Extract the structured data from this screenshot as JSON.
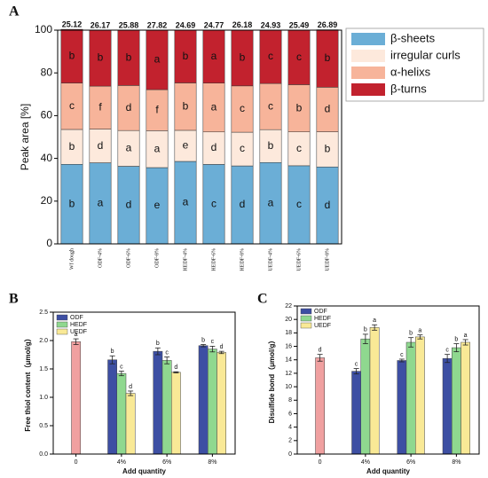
{
  "chart_data": [
    {
      "type": "stacked_bar",
      "panel": "A",
      "ylabel": "Peak area [%]",
      "categories": [
        "Wf dough",
        "ODF-4%",
        "ODF-6%",
        "ODF-8%",
        "HEDF-4%",
        "HEDF-6%",
        "HEDF-8%",
        "UEDF-4%",
        "UEDF-6%",
        "UEDF-8%"
      ],
      "series": [
        {
          "name": "β-sheets",
          "color": "#6baed6",
          "values": [
            37.23,
            37.94,
            36.31,
            35.69,
            38.59,
            37.19,
            36.49,
            38.07,
            36.56,
            36.01
          ],
          "letters": [
            "b",
            "a",
            "d",
            "e",
            "a",
            "c",
            "d",
            "a",
            "c",
            "d"
          ]
        },
        {
          "name": "irregular curls",
          "color": "#fde9dc",
          "values": [
            16.31,
            15.75,
            16.74,
            17.27,
            14.54,
            15.19,
            15.76,
            15.39,
            15.84,
            16.43
          ],
          "letters": [
            "b",
            "d",
            "a",
            "a",
            "e",
            "d",
            "c",
            "b",
            "c",
            "b"
          ]
        },
        {
          "name": "α-helixs",
          "color": "#f7b49a",
          "values": [
            21.73,
            20.13,
            21.07,
            19.22,
            22.18,
            22.84,
            21.67,
            21.6,
            22.09,
            20.86
          ],
          "letters": [
            "c",
            "f",
            "d",
            "f",
            "b",
            "a",
            "c",
            "c",
            "b",
            "d"
          ]
        },
        {
          "name": "β-turns",
          "color": "#c2222e",
          "values": [
            25.12,
            26.17,
            25.88,
            27.82,
            24.69,
            24.77,
            26.18,
            24.93,
            25.49,
            26.89
          ],
          "letters": [
            "b",
            "b",
            "b",
            "a",
            "b",
            "a",
            "b",
            "c",
            "c",
            "b"
          ]
        }
      ],
      "ylim": [
        0,
        100
      ],
      "yticks": [
        0,
        20,
        40,
        60,
        80,
        100
      ],
      "legend": "outside-right"
    },
    {
      "type": "bar",
      "panel": "B",
      "ylabel": "Free thiol content（μmol/g）",
      "xlabel": "Add quantity",
      "categories": [
        "0",
        "4%",
        "6%",
        "8%"
      ],
      "series": [
        {
          "color": "#f0a0a0",
          "values": [
            1.98,
            null,
            null,
            null
          ],
          "errors": [
            0.05,
            null,
            null,
            null
          ],
          "letters": [
            "a",
            null,
            null,
            null
          ]
        },
        {
          "name": "ODF",
          "color": "#3d4fa3",
          "values": [
            null,
            1.66,
            1.81,
            1.91
          ],
          "errors": [
            null,
            0.07,
            0.06,
            0.02
          ],
          "letters": [
            null,
            "b",
            "b",
            "b"
          ]
        },
        {
          "name": "HEDF",
          "color": "#8fd88f",
          "values": [
            null,
            1.42,
            1.65,
            1.85
          ],
          "errors": [
            null,
            0.04,
            0.06,
            0.05
          ],
          "letters": [
            null,
            "c",
            "c",
            "c"
          ]
        },
        {
          "name": "UEDF",
          "color": "#f9e996",
          "values": [
            null,
            1.07,
            1.44,
            1.79
          ],
          "errors": [
            null,
            0.04,
            0.01,
            0.02
          ],
          "letters": [
            null,
            "d",
            "d",
            "d"
          ]
        }
      ],
      "ylim": [
        0,
        2.5
      ],
      "yticks": [
        {
          "value": 0,
          "label": "0.0"
        },
        {
          "value": 0.5,
          "label": "0.5"
        },
        {
          "value": 1,
          "label": "1.0"
        },
        {
          "value": 1.5,
          "label": "1.5"
        },
        {
          "value": 2,
          "label": "2.0"
        },
        {
          "value": 2.5,
          "label": "2.5"
        }
      ],
      "legend": "upper-left"
    },
    {
      "type": "bar",
      "panel": "C",
      "ylabel": "Disulfide bond（μmol/g）",
      "xlabel": "Add quantity",
      "categories": [
        "0",
        "4%",
        "6%",
        "8%"
      ],
      "series": [
        {
          "color": "#f0a0a0",
          "values": [
            14.3,
            null,
            null,
            null
          ],
          "errors": [
            0.5,
            null,
            null,
            null
          ],
          "letters": [
            "d",
            null,
            null,
            null
          ]
        },
        {
          "name": "ODF",
          "color": "#3d4fa3",
          "values": [
            null,
            12.3,
            13.9,
            14.2
          ],
          "errors": [
            null,
            0.4,
            0.2,
            0.6
          ],
          "letters": [
            null,
            "c",
            "c",
            "c"
          ]
        },
        {
          "name": "HEDF",
          "color": "#8fd88f",
          "values": [
            null,
            17.1,
            16.6,
            15.8
          ],
          "errors": [
            null,
            0.7,
            0.7,
            0.6
          ],
          "letters": [
            null,
            "b",
            "b",
            "b"
          ]
        },
        {
          "name": "UEDF",
          "color": "#f9e996",
          "values": [
            null,
            18.8,
            17.4,
            16.6
          ],
          "errors": [
            null,
            0.4,
            0.3,
            0.4
          ],
          "letters": [
            null,
            "a",
            "a",
            "a"
          ]
        }
      ],
      "ylim": [
        0,
        22
      ],
      "yticks": [
        0,
        2,
        4,
        6,
        8,
        10,
        12,
        14,
        16,
        18,
        20,
        22
      ],
      "legend": "upper-left"
    }
  ]
}
